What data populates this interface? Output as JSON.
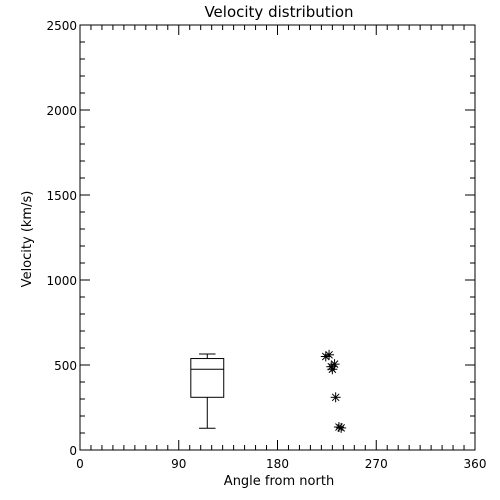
{
  "chart_data": {
    "type": "box",
    "title": "Velocity distribution",
    "xlabel": "Angle from north",
    "ylabel": "Velocity (km/s)",
    "xlim": [
      0,
      360
    ],
    "ylim": [
      0,
      2500
    ],
    "x_ticks": [
      0,
      90,
      180,
      270,
      360
    ],
    "x_tick_labels": [
      "0",
      "90",
      "180",
      "270",
      "360"
    ],
    "y_ticks": [
      0,
      500,
      1000,
      1500,
      2000,
      2500
    ],
    "y_tick_labels": [
      "0",
      "500",
      "1000",
      "1500",
      "2000",
      "2500"
    ],
    "grid": false,
    "box": {
      "x_left": 101,
      "x_right": 131,
      "whisker_low": 128,
      "q1": 310,
      "median": 475,
      "q3": 538,
      "whisker_high": 565
    },
    "outliers": [
      {
        "x": 224,
        "y": 550
      },
      {
        "x": 227,
        "y": 560
      },
      {
        "x": 229,
        "y": 490
      },
      {
        "x": 232,
        "y": 505
      },
      {
        "x": 230,
        "y": 475
      },
      {
        "x": 233,
        "y": 310
      },
      {
        "x": 236,
        "y": 135
      },
      {
        "x": 238,
        "y": 130
      }
    ]
  }
}
